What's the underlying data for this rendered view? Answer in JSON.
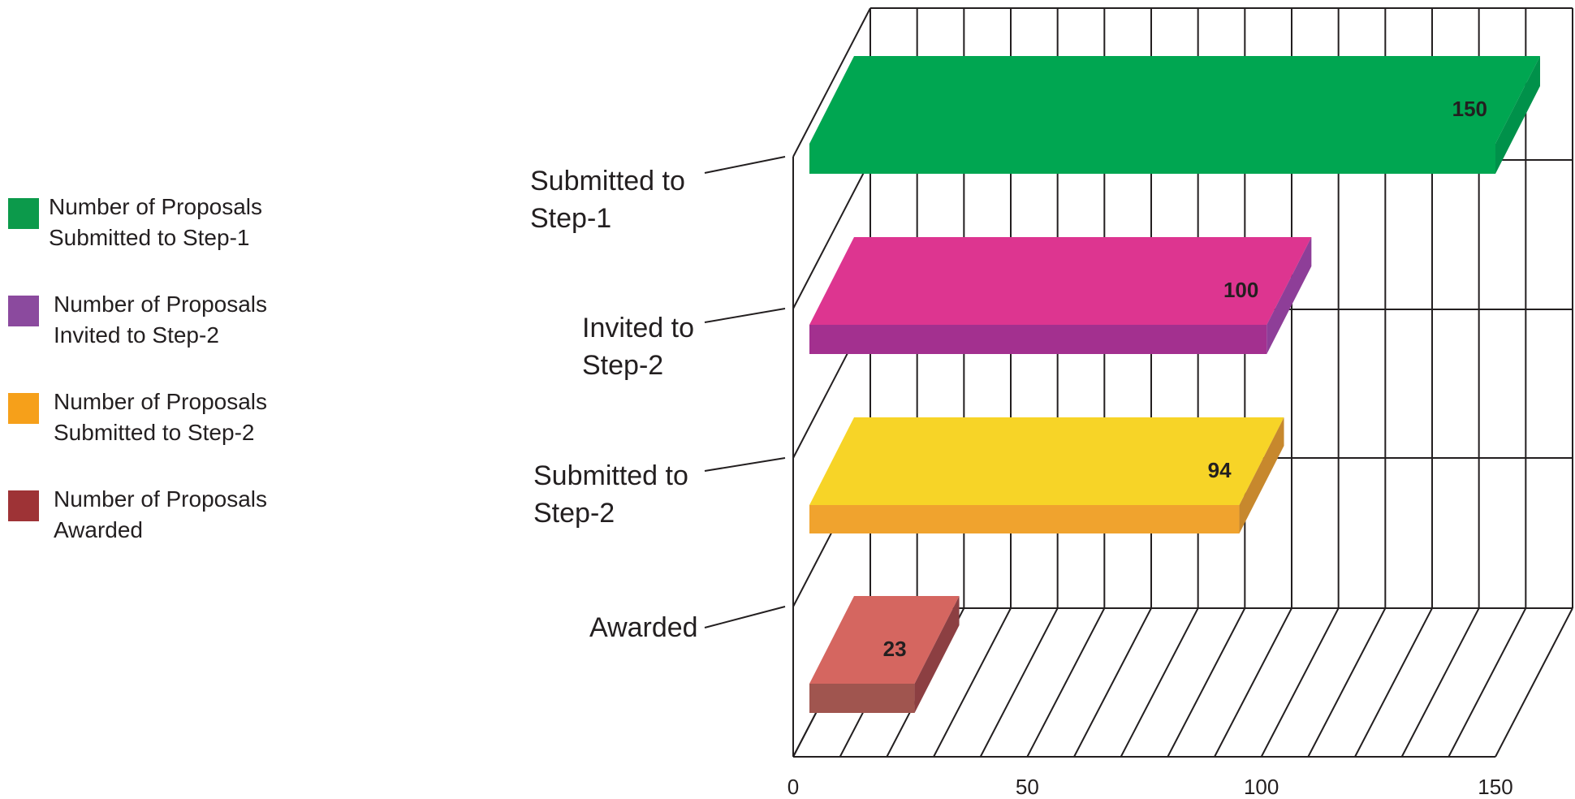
{
  "chart_data": {
    "type": "bar",
    "orientation": "horizontal",
    "three_d": true,
    "categories": [
      "Submitted to\nStep-1",
      "Invited to\nStep-2",
      "Submitted to\nStep-2",
      "Awarded"
    ],
    "values": [
      150,
      100,
      94,
      23
    ],
    "data_labels": [
      "150",
      "100",
      "94",
      "23"
    ],
    "xlim": [
      0,
      150
    ],
    "x_ticks": [
      0,
      50,
      100,
      150
    ],
    "x_tick_labels": [
      "0",
      "50",
      "100",
      "150"
    ],
    "grid": true,
    "legend_position": "left",
    "legend": [
      {
        "label": "Number of Proposals\nSubmitted to Step-1",
        "color": "#0c9a4b"
      },
      {
        "label": "Number of Proposals\nInvited to Step-2",
        "color": "#8b4a9e"
      },
      {
        "label": "Number of Proposals\nSubmitted to Step-2",
        "color": "#f6a01a"
      },
      {
        "label": "Number of Proposals\nAwarded",
        "color": "#9e3336"
      }
    ],
    "bar_colors": [
      {
        "top": "#00a651",
        "front": "#00a651",
        "side": "#00914a"
      },
      {
        "top": "#dd3590",
        "front": "#a3308f",
        "side": "#8e3e98"
      },
      {
        "top": "#f7d427",
        "front": "#f0a32e",
        "side": "#c7882d"
      },
      {
        "top": "#d56660",
        "front": "#a0554f",
        "side": "#8c3f42"
      }
    ]
  }
}
